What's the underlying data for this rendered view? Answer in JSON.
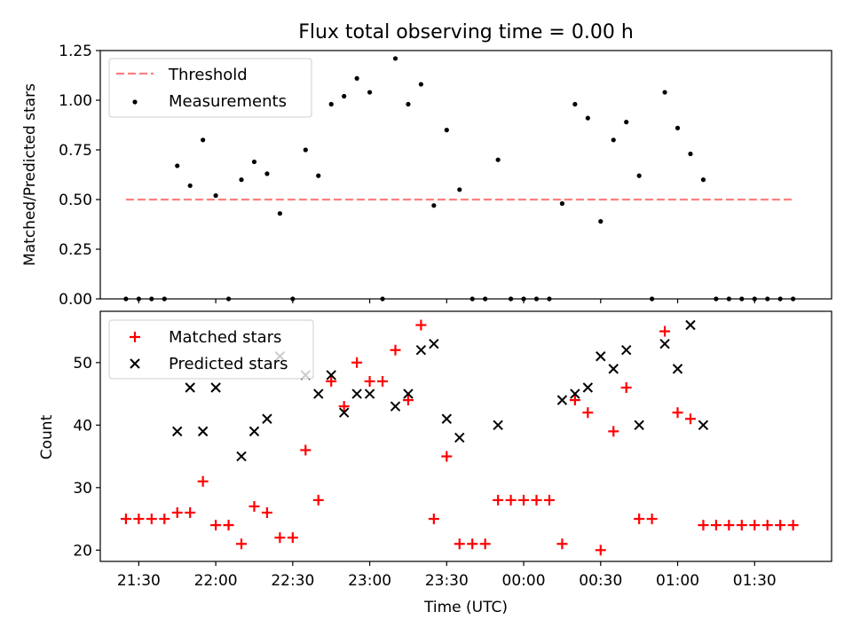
{
  "chart_data": [
    {
      "type": "scatter",
      "title": "Flux total observing time = 0.00 h",
      "ylabel": "Matched/Predicted stars",
      "ylim": [
        0,
        1.25
      ],
      "yticks": [
        "0.00",
        "0.25",
        "0.50",
        "0.75",
        "1.00",
        "1.25"
      ],
      "xlim_minutes": [
        1275,
        1560
      ],
      "legend_placement": "top-left",
      "threshold": {
        "name": "Threshold",
        "value": 0.5,
        "x_start": "21:25",
        "x_end": "01:45",
        "color": "#ff7f7f"
      },
      "series": [
        {
          "name": "Measurements",
          "color": "#000000",
          "points": [
            [
              "21:25",
              0.0
            ],
            [
              "21:30",
              0.0
            ],
            [
              "21:35",
              0.0
            ],
            [
              "21:40",
              0.0
            ],
            [
              "21:45",
              0.67
            ],
            [
              "21:50",
              0.57
            ],
            [
              "21:55",
              0.8
            ],
            [
              "22:00",
              0.52
            ],
            [
              "22:05",
              0.0
            ],
            [
              "22:10",
              0.6
            ],
            [
              "22:15",
              0.69
            ],
            [
              "22:20",
              0.63
            ],
            [
              "22:25",
              0.43
            ],
            [
              "22:30",
              0.0
            ],
            [
              "22:35",
              0.75
            ],
            [
              "22:40",
              0.62
            ],
            [
              "22:45",
              0.98
            ],
            [
              "22:50",
              1.02
            ],
            [
              "22:55",
              1.11
            ],
            [
              "23:00",
              1.04
            ],
            [
              "23:05",
              0.0
            ],
            [
              "23:10",
              1.21
            ],
            [
              "23:15",
              0.98
            ],
            [
              "23:20",
              1.08
            ],
            [
              "23:25",
              0.47
            ],
            [
              "23:30",
              0.85
            ],
            [
              "23:35",
              0.55
            ],
            [
              "23:40",
              0.0
            ],
            [
              "23:45",
              0.0
            ],
            [
              "23:50",
              0.7
            ],
            [
              "23:55",
              0.0
            ],
            [
              "00:00",
              0.0
            ],
            [
              "00:05",
              0.0
            ],
            [
              "00:10",
              0.0
            ],
            [
              "00:15",
              0.48
            ],
            [
              "00:20",
              0.98
            ],
            [
              "00:25",
              0.91
            ],
            [
              "00:30",
              0.39
            ],
            [
              "00:35",
              0.8
            ],
            [
              "00:40",
              0.89
            ],
            [
              "00:45",
              0.62
            ],
            [
              "00:50",
              0.0
            ],
            [
              "00:55",
              1.04
            ],
            [
              "01:00",
              0.86
            ],
            [
              "01:05",
              0.73
            ],
            [
              "01:10",
              0.6
            ],
            [
              "01:15",
              0.0
            ],
            [
              "01:20",
              0.0
            ],
            [
              "01:25",
              0.0
            ],
            [
              "01:30",
              0.0
            ],
            [
              "01:35",
              0.0
            ],
            [
              "01:40",
              0.0
            ],
            [
              "01:45",
              0.0
            ]
          ]
        }
      ]
    },
    {
      "type": "scatter",
      "xlabel": "Time (UTC)",
      "ylabel": "Count",
      "ylim": [
        18.2,
        58.2
      ],
      "yticks": [
        "20",
        "30",
        "40",
        "50"
      ],
      "xlim_minutes": [
        1275,
        1560
      ],
      "xticks": [
        "21:30",
        "22:00",
        "22:30",
        "23:00",
        "23:30",
        "00:00",
        "00:30",
        "01:00",
        "01:30"
      ],
      "legend_placement": "top-left",
      "series": [
        {
          "name": "Matched stars",
          "color": "#ff0000",
          "marker": "plus",
          "points": [
            [
              "21:25",
              25
            ],
            [
              "21:30",
              25
            ],
            [
              "21:35",
              25
            ],
            [
              "21:40",
              25
            ],
            [
              "21:45",
              26
            ],
            [
              "21:50",
              26
            ],
            [
              "21:55",
              31
            ],
            [
              "22:00",
              24
            ],
            [
              "22:05",
              24
            ],
            [
              "22:10",
              21
            ],
            [
              "22:15",
              27
            ],
            [
              "22:20",
              26
            ],
            [
              "22:25",
              22
            ],
            [
              "22:30",
              22
            ],
            [
              "22:35",
              36
            ],
            [
              "22:40",
              28
            ],
            [
              "22:45",
              47
            ],
            [
              "22:50",
              43
            ],
            [
              "22:55",
              50
            ],
            [
              "23:00",
              47
            ],
            [
              "23:05",
              47
            ],
            [
              "23:10",
              52
            ],
            [
              "23:15",
              44
            ],
            [
              "23:20",
              56
            ],
            [
              "23:25",
              25
            ],
            [
              "23:30",
              35
            ],
            [
              "23:35",
              21
            ],
            [
              "23:40",
              21
            ],
            [
              "23:45",
              21
            ],
            [
              "23:50",
              28
            ],
            [
              "23:55",
              28
            ],
            [
              "00:00",
              28
            ],
            [
              "00:05",
              28
            ],
            [
              "00:10",
              28
            ],
            [
              "00:15",
              21
            ],
            [
              "00:20",
              44
            ],
            [
              "00:25",
              42
            ],
            [
              "00:30",
              20
            ],
            [
              "00:35",
              39
            ],
            [
              "00:40",
              46
            ],
            [
              "00:45",
              25
            ],
            [
              "00:50",
              25
            ],
            [
              "00:55",
              55
            ],
            [
              "01:00",
              42
            ],
            [
              "01:05",
              41
            ],
            [
              "01:10",
              24
            ],
            [
              "01:15",
              24
            ],
            [
              "01:20",
              24
            ],
            [
              "01:25",
              24
            ],
            [
              "01:30",
              24
            ],
            [
              "01:35",
              24
            ],
            [
              "01:40",
              24
            ],
            [
              "01:45",
              24
            ]
          ]
        },
        {
          "name": "Predicted stars",
          "color": "#000000",
          "marker": "x",
          "points": [
            [
              "21:45",
              39
            ],
            [
              "21:50",
              46
            ],
            [
              "21:55",
              39
            ],
            [
              "22:00",
              46
            ],
            [
              "22:10",
              35
            ],
            [
              "22:15",
              39
            ],
            [
              "22:20",
              41
            ],
            [
              "22:25",
              51
            ],
            [
              "22:35",
              48
            ],
            [
              "22:40",
              45
            ],
            [
              "22:45",
              48
            ],
            [
              "22:50",
              42
            ],
            [
              "22:55",
              45
            ],
            [
              "23:00",
              45
            ],
            [
              "23:10",
              43
            ],
            [
              "23:15",
              45
            ],
            [
              "23:20",
              52
            ],
            [
              "23:25",
              53
            ],
            [
              "23:30",
              41
            ],
            [
              "23:35",
              38
            ],
            [
              "23:50",
              40
            ],
            [
              "00:15",
              44
            ],
            [
              "00:20",
              45
            ],
            [
              "00:25",
              46
            ],
            [
              "00:30",
              51
            ],
            [
              "00:35",
              49
            ],
            [
              "00:40",
              52
            ],
            [
              "00:45",
              40
            ],
            [
              "00:55",
              53
            ],
            [
              "01:00",
              49
            ],
            [
              "01:05",
              56
            ],
            [
              "01:10",
              40
            ]
          ]
        }
      ]
    }
  ]
}
